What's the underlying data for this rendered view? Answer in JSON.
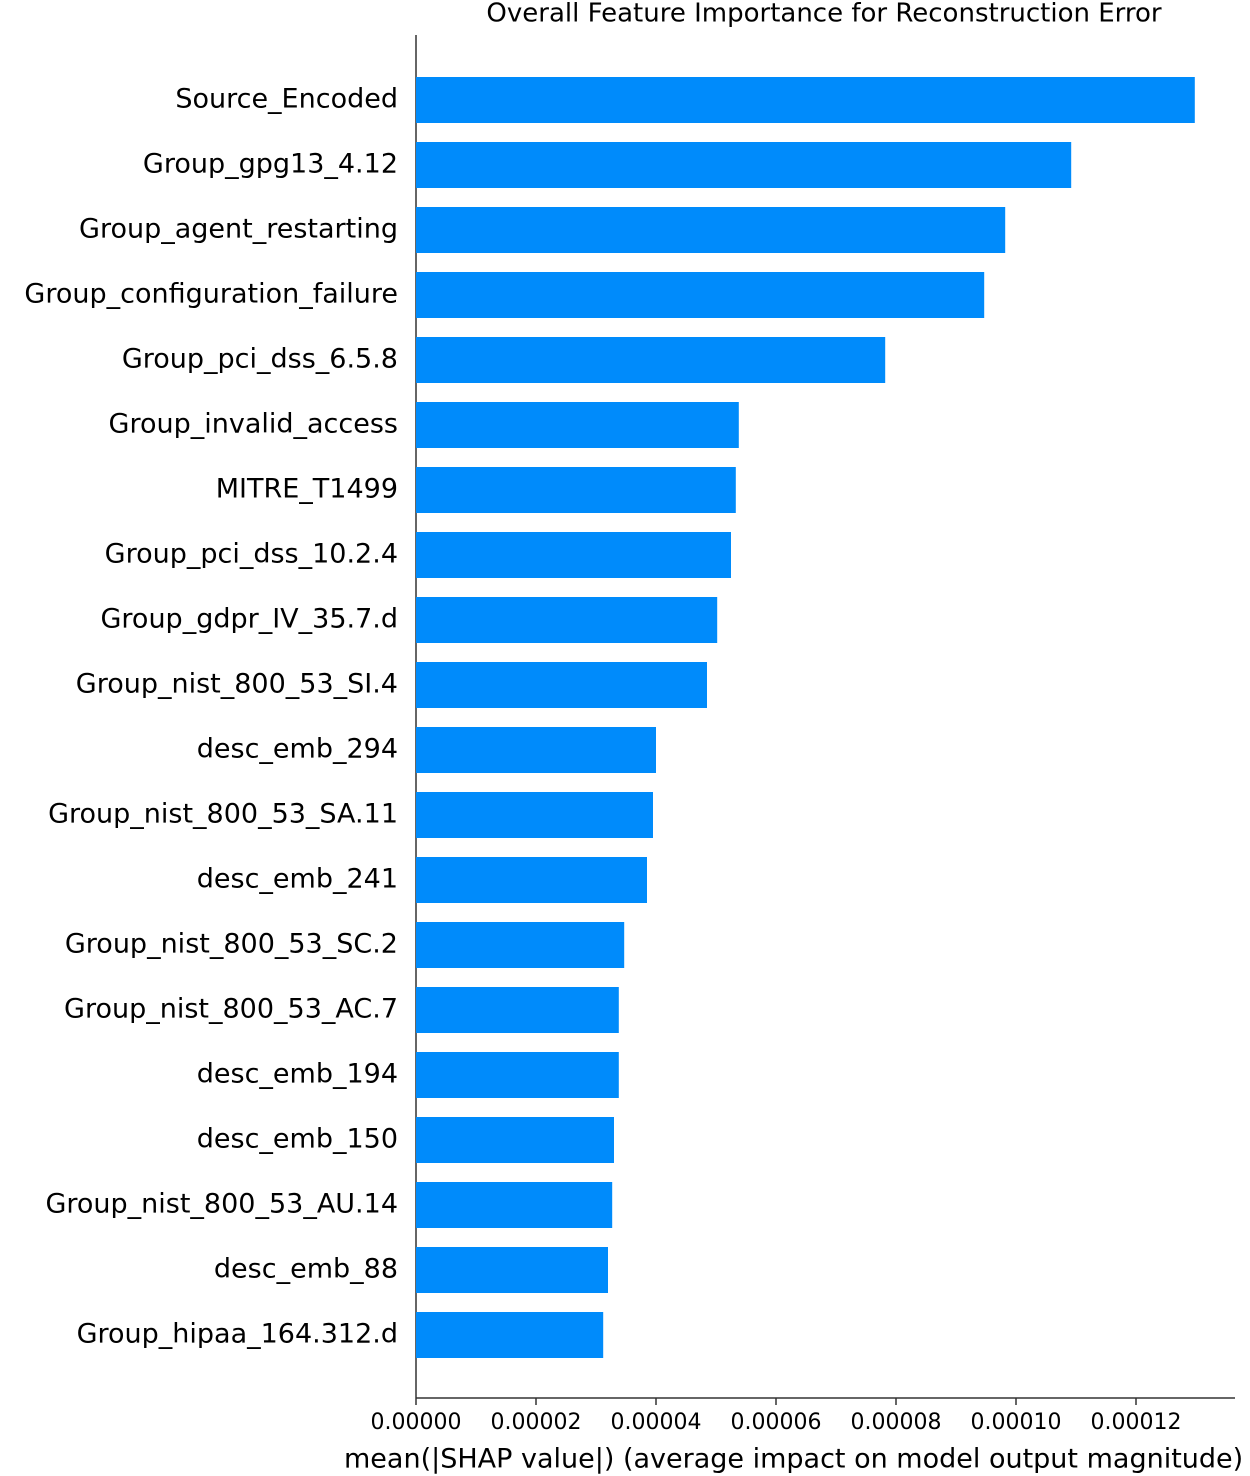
{
  "chart_data": {
    "type": "barh",
    "title": "Overall Feature Importance for Reconstruction Error",
    "x_label": "mean(|SHAP value|) (average impact on model output magnitude)",
    "categories": [
      "Source_Encoded",
      "Group_gpg13_4.12",
      "Group_agent_restarting",
      "Group_configuration_failure",
      "Group_pci_dss_6.5.8",
      "Group_invalid_access",
      "MITRE_T1499",
      "Group_pci_dss_10.2.4",
      "Group_gdpr_IV_35.7.d",
      "Group_nist_800_53_SI.4",
      "desc_emb_294",
      "Group_nist_800_53_SA.11",
      "desc_emb_241",
      "Group_nist_800_53_SC.2",
      "Group_nist_800_53_AC.7",
      "desc_emb_194",
      "desc_emb_150",
      "Group_nist_800_53_AU.14",
      "desc_emb_88",
      "Group_hipaa_164.312.d"
    ],
    "values": [
      0.0001298,
      0.0001092,
      9.82e-05,
      9.47e-05,
      7.82e-05,
      5.38e-05,
      5.33e-05,
      5.25e-05,
      5.02e-05,
      4.85e-05,
      4e-05,
      3.95e-05,
      3.85e-05,
      3.47e-05,
      3.38e-05,
      3.38e-05,
      3.3e-05,
      3.27e-05,
      3.2e-05,
      3.12e-05
    ],
    "color": "#008bfb",
    "xlim": [
      0,
      0.0001365
    ],
    "xticks": [
      {
        "value": 0,
        "label": "0.00000"
      },
      {
        "value": 2e-05,
        "label": "0.00002"
      },
      {
        "value": 4e-05,
        "label": "0.00004"
      },
      {
        "value": 6e-05,
        "label": "0.00006"
      },
      {
        "value": 8e-05,
        "label": "0.00008"
      },
      {
        "value": 0.0001,
        "label": "0.00010"
      },
      {
        "value": 0.00012,
        "label": "0.00012"
      }
    ]
  }
}
